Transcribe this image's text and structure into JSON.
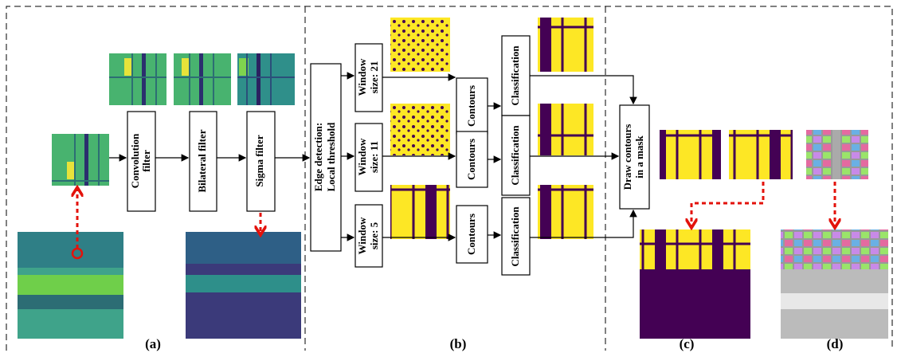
{
  "panels": {
    "a": {
      "label": "(a)",
      "steps": [
        [
          "Convolution",
          "filter"
        ],
        [
          "Bilateral filter"
        ],
        [
          "Sigma filter"
        ]
      ]
    },
    "b": {
      "label": "(b)",
      "edge": [
        "Edge detection:",
        "Local threshold"
      ],
      "windows": [
        [
          "Window",
          "size: 21"
        ],
        [
          "Window",
          "size: 11"
        ],
        [
          "Window",
          "size: 5"
        ]
      ],
      "contours": [
        "Contours",
        "Contours",
        "Contours"
      ],
      "classification": [
        "Classification",
        "Classification",
        "Classification"
      ]
    },
    "c": {
      "label": "(c)",
      "draw": [
        "Draw contours",
        "in a mask"
      ]
    },
    "d": {
      "label": "(d)"
    }
  }
}
